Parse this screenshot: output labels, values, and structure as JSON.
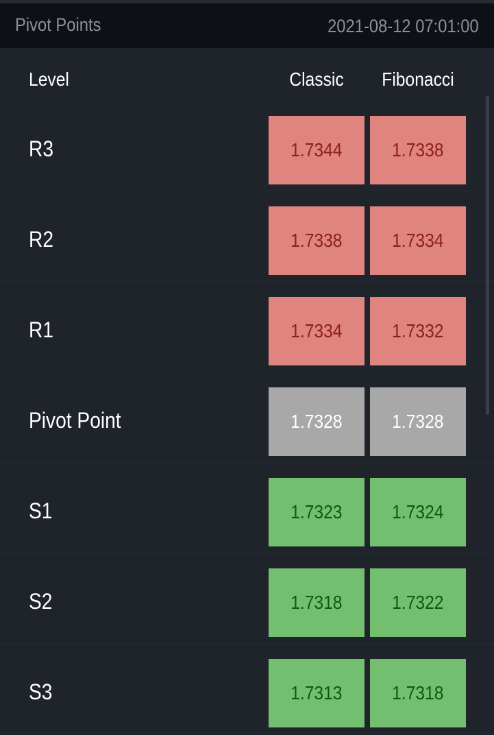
{
  "header": {
    "title": "Pivot Points",
    "timestamp": "2021-08-12 07:01:00"
  },
  "columns": {
    "level": "Level",
    "classic": "Classic",
    "fibonacci": "Fibonacci"
  },
  "colors": {
    "resistance": "#e08480",
    "pivot": "#a8a8a8",
    "support": "#74bf6f"
  },
  "rows": [
    {
      "level": "R3",
      "classic": "1.7344",
      "fibonacci": "1.7338",
      "type": "res"
    },
    {
      "level": "R2",
      "classic": "1.7338",
      "fibonacci": "1.7334",
      "type": "res"
    },
    {
      "level": "R1",
      "classic": "1.7334",
      "fibonacci": "1.7332",
      "type": "res"
    },
    {
      "level": "Pivot Point",
      "classic": "1.7328",
      "fibonacci": "1.7328",
      "type": "piv"
    },
    {
      "level": "S1",
      "classic": "1.7323",
      "fibonacci": "1.7324",
      "type": "sup"
    },
    {
      "level": "S2",
      "classic": "1.7318",
      "fibonacci": "1.7322",
      "type": "sup"
    },
    {
      "level": "S3",
      "classic": "1.7313",
      "fibonacci": "1.7318",
      "type": "sup"
    }
  ]
}
